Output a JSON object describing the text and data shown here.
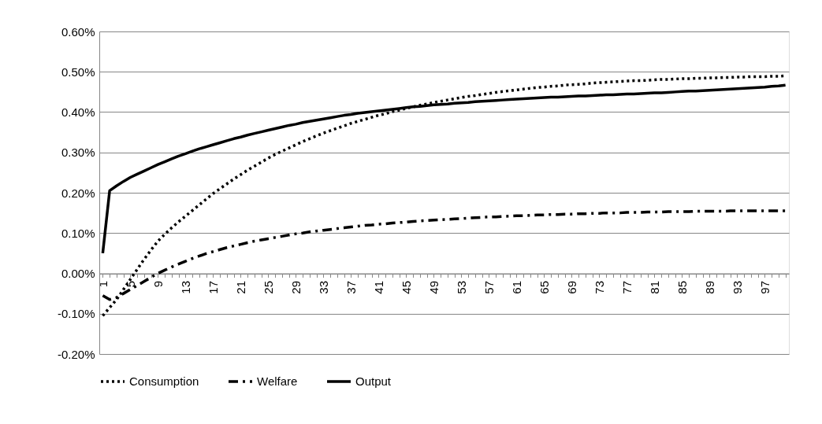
{
  "chart_data": {
    "type": "line",
    "categories": [
      "1",
      null,
      null,
      null,
      "5",
      null,
      null,
      null,
      "9",
      null,
      null,
      null,
      "13",
      null,
      null,
      null,
      "17",
      null,
      null,
      null,
      "21",
      null,
      null,
      null,
      "25",
      null,
      null,
      null,
      "29",
      null,
      null,
      null,
      "33",
      null,
      null,
      null,
      "37",
      null,
      null,
      null,
      "41",
      null,
      null,
      null,
      "45",
      null,
      null,
      null,
      "49",
      null,
      null,
      null,
      "53",
      null,
      null,
      null,
      "57",
      null,
      null,
      null,
      "61",
      null,
      null,
      null,
      "65",
      null,
      null,
      null,
      "69",
      null,
      null,
      null,
      "73",
      null,
      null,
      null,
      "77",
      null,
      null,
      null,
      "81",
      null,
      null,
      null,
      "85",
      null,
      null,
      null,
      "89",
      null,
      null,
      null,
      "93",
      null,
      null,
      null,
      "97",
      null,
      null,
      null
    ],
    "series": [
      {
        "name": "Consumption",
        "color": "#000000",
        "line_style": "dotted",
        "values": [
          -0.105,
          -0.085,
          -0.065,
          -0.04,
          -0.015,
          0.01,
          0.035,
          0.058,
          0.08,
          0.097,
          0.113,
          0.128,
          0.142,
          0.156,
          0.17,
          0.184,
          0.198,
          0.21,
          0.222,
          0.234,
          0.245,
          0.256,
          0.266,
          0.276,
          0.286,
          0.295,
          0.303,
          0.311,
          0.319,
          0.327,
          0.334,
          0.341,
          0.348,
          0.354,
          0.36,
          0.366,
          0.372,
          0.377,
          0.382,
          0.387,
          0.392,
          0.396,
          0.401,
          0.405,
          0.409,
          0.413,
          0.417,
          0.42,
          0.424,
          0.427,
          0.43,
          0.433,
          0.436,
          0.439,
          0.441,
          0.444,
          0.446,
          0.449,
          0.451,
          0.453,
          0.455,
          0.457,
          0.459,
          0.461,
          0.462,
          0.464,
          0.465,
          0.467,
          0.468,
          0.469,
          0.47,
          0.472,
          0.473,
          0.474,
          0.475,
          0.476,
          0.477,
          0.478,
          0.478,
          0.479,
          0.48,
          0.481,
          0.481,
          0.482,
          0.483,
          0.483,
          0.484,
          0.484,
          0.485,
          0.485,
          0.486,
          0.486,
          0.487,
          0.487,
          0.488,
          0.488,
          0.488,
          0.489,
          0.489,
          0.49
        ]
      },
      {
        "name": "Welfare",
        "color": "#000000",
        "line_style": "dashed",
        "values": [
          -0.055,
          -0.065,
          -0.06,
          -0.05,
          -0.04,
          -0.03,
          -0.02,
          -0.01,
          0.0,
          0.008,
          0.016,
          0.023,
          0.03,
          0.037,
          0.043,
          0.049,
          0.054,
          0.059,
          0.064,
          0.068,
          0.072,
          0.076,
          0.08,
          0.083,
          0.086,
          0.089,
          0.092,
          0.095,
          0.098,
          0.1,
          0.103,
          0.105,
          0.107,
          0.109,
          0.111,
          0.113,
          0.115,
          0.117,
          0.119,
          0.12,
          0.122,
          0.123,
          0.125,
          0.126,
          0.127,
          0.129,
          0.13,
          0.131,
          0.132,
          0.133,
          0.134,
          0.135,
          0.136,
          0.137,
          0.138,
          0.139,
          0.14,
          0.14,
          0.141,
          0.142,
          0.143,
          0.143,
          0.144,
          0.145,
          0.145,
          0.146,
          0.146,
          0.147,
          0.147,
          0.148,
          0.148,
          0.149,
          0.149,
          0.15,
          0.15,
          0.15,
          0.151,
          0.151,
          0.151,
          0.152,
          0.152,
          0.152,
          0.153,
          0.153,
          0.153,
          0.153,
          0.154,
          0.154,
          0.154,
          0.154,
          0.154,
          0.155,
          0.155,
          0.155,
          0.155,
          0.155,
          0.155,
          0.155,
          0.155,
          0.155
        ]
      },
      {
        "name": "Output",
        "color": "#000000",
        "line_style": "solid",
        "values": [
          0.05,
          0.205,
          0.217,
          0.228,
          0.238,
          0.246,
          0.254,
          0.262,
          0.27,
          0.277,
          0.284,
          0.291,
          0.297,
          0.303,
          0.309,
          0.314,
          0.319,
          0.324,
          0.329,
          0.334,
          0.338,
          0.343,
          0.347,
          0.351,
          0.355,
          0.359,
          0.363,
          0.367,
          0.37,
          0.374,
          0.377,
          0.38,
          0.383,
          0.386,
          0.389,
          0.392,
          0.394,
          0.397,
          0.399,
          0.401,
          0.403,
          0.405,
          0.407,
          0.409,
          0.411,
          0.413,
          0.414,
          0.416,
          0.418,
          0.419,
          0.42,
          0.422,
          0.423,
          0.424,
          0.426,
          0.427,
          0.428,
          0.429,
          0.43,
          0.431,
          0.432,
          0.433,
          0.434,
          0.435,
          0.436,
          0.437,
          0.437,
          0.438,
          0.439,
          0.44,
          0.44,
          0.441,
          0.442,
          0.443,
          0.443,
          0.444,
          0.445,
          0.445,
          0.446,
          0.447,
          0.448,
          0.448,
          0.449,
          0.45,
          0.451,
          0.452,
          0.452,
          0.453,
          0.454,
          0.455,
          0.456,
          0.457,
          0.458,
          0.459,
          0.46,
          0.461,
          0.462,
          0.464,
          0.465,
          0.467
        ]
      }
    ],
    "ylim": [
      -0.2,
      0.6
    ],
    "yticks": [
      {
        "value": -0.2,
        "label": "-0.20%"
      },
      {
        "value": -0.1,
        "label": "-0.10%"
      },
      {
        "value": 0,
        "label": "0.00%"
      },
      {
        "value": 0.1,
        "label": "0.10%"
      },
      {
        "value": 0.2,
        "label": "0.20%"
      },
      {
        "value": 0.3,
        "label": "0.30%"
      },
      {
        "value": 0.4,
        "label": "0.40%"
      },
      {
        "value": 0.5,
        "label": "0.50%"
      },
      {
        "value": 0.6,
        "label": "0.60%"
      }
    ],
    "grid": "y",
    "legend": "bottom",
    "marker": "none"
  }
}
